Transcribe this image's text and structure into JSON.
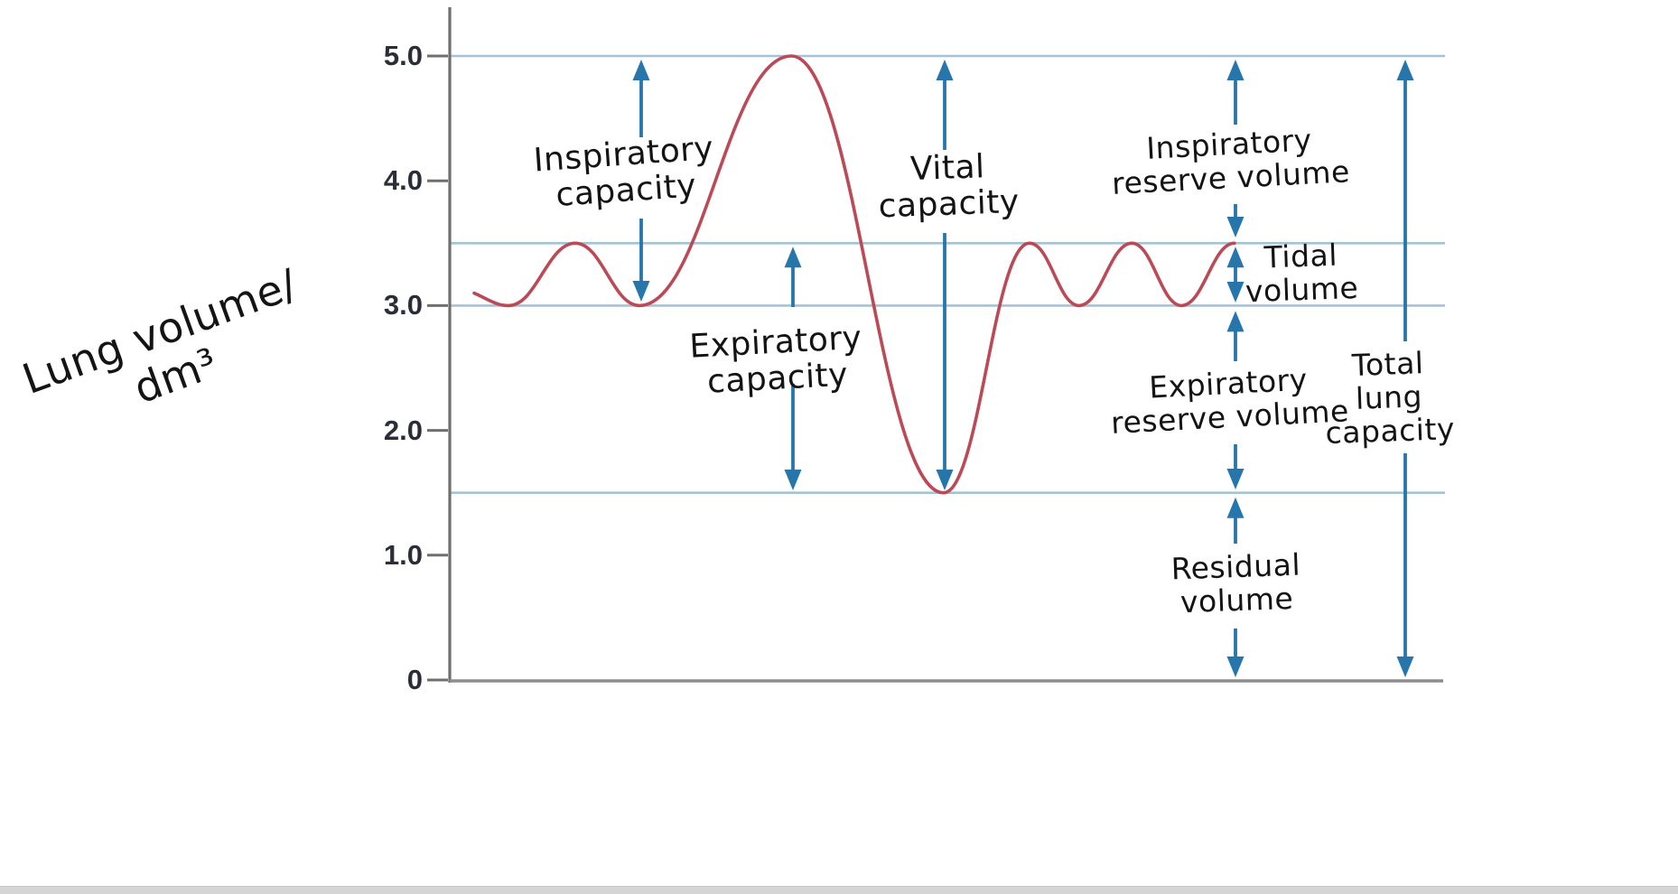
{
  "figure": {
    "description": "Hand-annotated spirometry trace of lung volume over time",
    "colors": {
      "trace_red": "#bb4a56",
      "arrow_blue": "#2676ab",
      "gridline_blue": "#a3c4d8",
      "axis_gray": "#6f6f6f",
      "x_axis_gray": "#8d8d8d",
      "ink_black": "#141414",
      "tick_text": "#2b2e38",
      "bottom_bar_gray": "#d5d5d5"
    }
  },
  "chart_data": {
    "type": "line",
    "title": "",
    "xlabel": "",
    "ylabel": "Lung volume / dm³",
    "ylabel_lines": [
      "Lung volume/",
      "dm³"
    ],
    "ylim": [
      0,
      5.4
    ],
    "grid": "horizontal reference lines only",
    "gridline_values": [
      5.0,
      3.5,
      3.0,
      1.5
    ],
    "yticks": [
      {
        "label": "5.0",
        "value": 5.0
      },
      {
        "label": "4.0",
        "value": 4.0
      },
      {
        "label": "3.0",
        "value": 3.0
      },
      {
        "label": "2.0",
        "value": 2.0
      },
      {
        "label": "1.0",
        "value": 1.0
      },
      {
        "label": "0",
        "value": 0.0
      }
    ],
    "series": [
      {
        "name": "spirometry-trace",
        "points": [
          {
            "t": 0.0,
            "v": 3.1
          },
          {
            "t": 0.52,
            "v": 3.0
          },
          {
            "t": 1.53,
            "v": 3.5
          },
          {
            "t": 2.5,
            "v": 3.0
          },
          {
            "t": 4.8,
            "v": 5.0
          },
          {
            "t": 7.1,
            "v": 1.5
          },
          {
            "t": 8.4,
            "v": 3.5
          },
          {
            "t": 9.15,
            "v": 3.0
          },
          {
            "t": 9.95,
            "v": 3.5
          },
          {
            "t": 10.7,
            "v": 3.0
          },
          {
            "t": 11.5,
            "v": 3.5
          }
        ]
      }
    ],
    "annotations": [
      {
        "id": "inspiratory_capacity",
        "lines": [
          "Inspiratory",
          "capacity"
        ],
        "from_v": 3.0,
        "to_v": 5.0,
        "span_dm3": 2.0
      },
      {
        "id": "expiratory_capacity",
        "lines": [
          "Expiratory",
          "capacity"
        ],
        "from_v": 1.5,
        "to_v": 3.5,
        "span_dm3": 2.0
      },
      {
        "id": "vital_capacity",
        "lines": [
          "Vital",
          "capacity"
        ],
        "from_v": 1.5,
        "to_v": 5.0,
        "span_dm3": 3.5
      },
      {
        "id": "inspiratory_reserve_volume",
        "lines": [
          "Inspiratory",
          "reserve volume"
        ],
        "from_v": 3.5,
        "to_v": 5.0,
        "span_dm3": 1.5
      },
      {
        "id": "tidal_volume",
        "lines": [
          "Tidal",
          "volume"
        ],
        "from_v": 3.0,
        "to_v": 3.5,
        "span_dm3": 0.5
      },
      {
        "id": "expiratory_reserve_volume",
        "lines": [
          "Expiratory",
          "reserve volume"
        ],
        "from_v": 1.5,
        "to_v": 3.0,
        "span_dm3": 1.5
      },
      {
        "id": "residual_volume",
        "lines": [
          "Residual",
          "volume"
        ],
        "from_v": 0.0,
        "to_v": 1.5,
        "span_dm3": 1.5
      },
      {
        "id": "total_lung_capacity",
        "lines": [
          "Total",
          "lung",
          "capacity"
        ],
        "from_v": 0.0,
        "to_v": 5.0,
        "span_dm3": 5.0
      }
    ]
  }
}
